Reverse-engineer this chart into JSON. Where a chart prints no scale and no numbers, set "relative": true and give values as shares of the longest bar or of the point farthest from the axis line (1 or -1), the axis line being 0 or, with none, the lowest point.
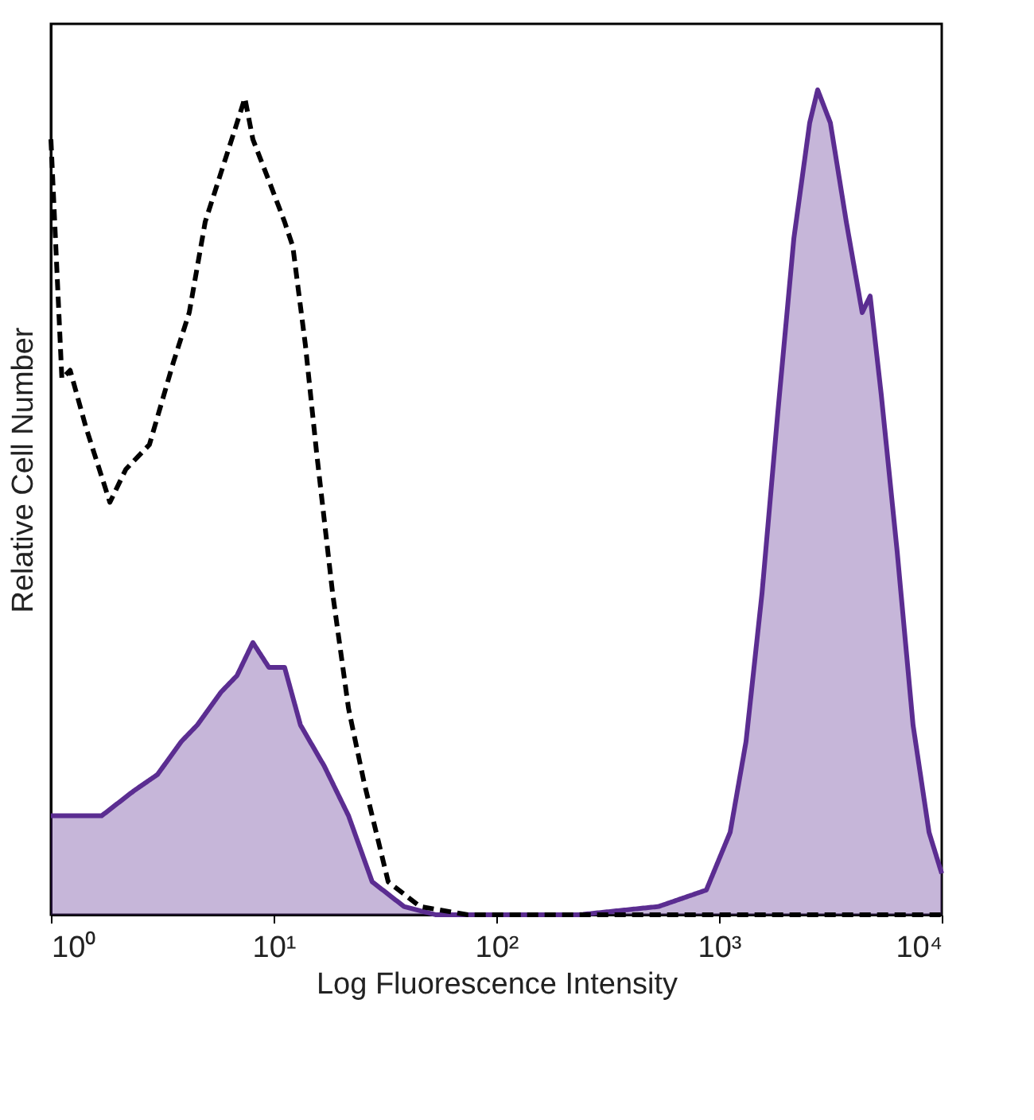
{
  "chart_data": {
    "type": "area",
    "xlabel": "Log Fluorescence Intensity",
    "ylabel": "Relative Cell Number",
    "relative": true,
    "log": "x",
    "grid": false,
    "tick_labels": "x",
    "xlim": [
      1,
      10000
    ],
    "xticks": [
      {
        "value": 1,
        "label": "10⁰"
      },
      {
        "value": 10,
        "label": "10¹"
      },
      {
        "value": 100,
        "label": "10²"
      },
      {
        "value": 1000,
        "label": "10³"
      },
      {
        "value": 10000,
        "label": "10⁴"
      }
    ],
    "series": [
      {
        "color": "#5b2d91",
        "line_style": "solid",
        "x": [
          1,
          1.22,
          1.69,
          2.35,
          3.01,
          3.85,
          4.54,
          5.81,
          6.85,
          8.07,
          9.52,
          11.2,
          13.2,
          16.9,
          21.7,
          27.7,
          38.5,
          53.5,
          235,
          535,
          877,
          1122,
          1322,
          1560,
          1838,
          2168,
          2553,
          2773,
          3162,
          3728,
          4394,
          4771,
          5353,
          6310,
          7434,
          8770,
          10000
        ],
        "values": [
          0.12,
          0.12,
          0.12,
          0.15,
          0.17,
          0.21,
          0.23,
          0.27,
          0.29,
          0.33,
          0.3,
          0.3,
          0.23,
          0.18,
          0.12,
          0.04,
          0.01,
          0,
          0,
          0.01,
          0.03,
          0.1,
          0.21,
          0.39,
          0.61,
          0.82,
          0.96,
          1.0,
          0.96,
          0.84,
          0.73,
          0.75,
          0.63,
          0.44,
          0.23,
          0.1,
          0.05
        ]
      },
      {
        "type": "line",
        "color": "#000000",
        "line_style": "dashed",
        "x": [
          1,
          1.12,
          1.22,
          1.44,
          1.84,
          2.17,
          2.77,
          3.55,
          4.18,
          4.93,
          5.81,
          6.85,
          7.43,
          8.07,
          9.52,
          11.2,
          12.2,
          13.9,
          15.6,
          18.4,
          21.7,
          25.5,
          32.7,
          45.4,
          74.4,
          10000
        ],
        "values": [
          0.94,
          0.65,
          0.66,
          0.59,
          0.5,
          0.54,
          0.57,
          0.67,
          0.73,
          0.84,
          0.9,
          0.96,
          0.99,
          0.94,
          0.89,
          0.84,
          0.81,
          0.69,
          0.56,
          0.39,
          0.25,
          0.16,
          0.04,
          0.01,
          0,
          0
        ]
      }
    ]
  }
}
